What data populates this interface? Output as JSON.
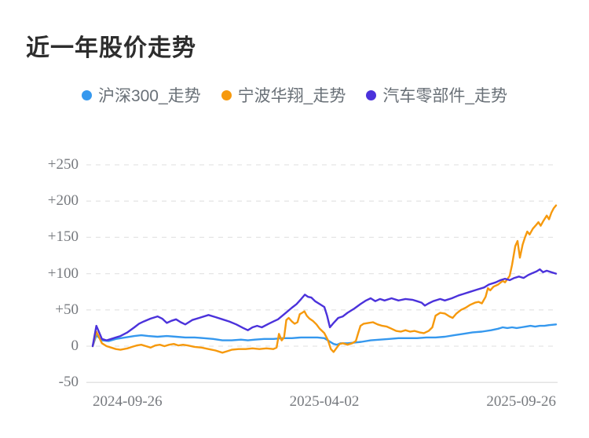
{
  "title": "近一年股价走势",
  "chart_data": {
    "type": "line",
    "title": "近一年股价走势",
    "legend_position": "top-center",
    "grid": "horizontal-dashed",
    "x_axis": {
      "labels": [
        "2024-09-26",
        "2025-04-02",
        "2025-09-26"
      ],
      "note": "x of each point is fraction 0-1 across one year of trading days"
    },
    "y_axis": {
      "ylim": [
        -50,
        250
      ],
      "ticks": [
        250,
        200,
        150,
        100,
        50,
        0,
        -50
      ],
      "tick_labels": [
        "+250",
        "+200",
        "+150",
        "+100",
        "+50",
        "0",
        "-50"
      ]
    },
    "series": [
      {
        "id": "hs300",
        "name": "沪深300_走势",
        "color": "#3598ee",
        "points": [
          [
            0,
            0
          ],
          [
            0.008,
            15
          ],
          [
            0.02,
            8
          ],
          [
            0.035,
            7
          ],
          [
            0.05,
            10
          ],
          [
            0.07,
            12
          ],
          [
            0.09,
            14
          ],
          [
            0.105,
            15
          ],
          [
            0.12,
            14
          ],
          [
            0.14,
            13
          ],
          [
            0.16,
            14
          ],
          [
            0.18,
            13
          ],
          [
            0.2,
            12
          ],
          [
            0.22,
            12
          ],
          [
            0.24,
            11
          ],
          [
            0.26,
            10
          ],
          [
            0.28,
            8
          ],
          [
            0.3,
            8
          ],
          [
            0.32,
            9
          ],
          [
            0.335,
            8
          ],
          [
            0.35,
            9
          ],
          [
            0.37,
            10
          ],
          [
            0.39,
            10
          ],
          [
            0.41,
            11
          ],
          [
            0.43,
            11
          ],
          [
            0.45,
            12
          ],
          [
            0.47,
            12
          ],
          [
            0.485,
            12
          ],
          [
            0.5,
            11
          ],
          [
            0.51,
            7
          ],
          [
            0.52,
            3
          ],
          [
            0.527,
            2
          ],
          [
            0.535,
            4
          ],
          [
            0.55,
            4
          ],
          [
            0.565,
            5
          ],
          [
            0.58,
            6
          ],
          [
            0.6,
            8
          ],
          [
            0.62,
            9
          ],
          [
            0.64,
            10
          ],
          [
            0.66,
            11
          ],
          [
            0.68,
            11
          ],
          [
            0.7,
            11
          ],
          [
            0.72,
            12
          ],
          [
            0.74,
            12
          ],
          [
            0.76,
            13
          ],
          [
            0.78,
            15
          ],
          [
            0.8,
            17
          ],
          [
            0.82,
            19
          ],
          [
            0.84,
            20
          ],
          [
            0.86,
            22
          ],
          [
            0.875,
            24
          ],
          [
            0.885,
            26
          ],
          [
            0.895,
            25
          ],
          [
            0.905,
            26
          ],
          [
            0.915,
            25
          ],
          [
            0.925,
            26
          ],
          [
            0.935,
            27
          ],
          [
            0.945,
            28
          ],
          [
            0.955,
            27
          ],
          [
            0.965,
            28
          ],
          [
            0.975,
            28
          ],
          [
            0.985,
            29
          ],
          [
            1,
            30
          ]
        ]
      },
      {
        "id": "nbhx",
        "name": "宁波华翔_走势",
        "color": "#f6990d",
        "points": [
          [
            0,
            0
          ],
          [
            0.008,
            20
          ],
          [
            0.02,
            4
          ],
          [
            0.03,
            0
          ],
          [
            0.04,
            -2
          ],
          [
            0.05,
            -4
          ],
          [
            0.06,
            -5
          ],
          [
            0.075,
            -3
          ],
          [
            0.085,
            -1
          ],
          [
            0.095,
            1
          ],
          [
            0.105,
            2
          ],
          [
            0.115,
            0
          ],
          [
            0.125,
            -2
          ],
          [
            0.135,
            1
          ],
          [
            0.145,
            2
          ],
          [
            0.155,
            0
          ],
          [
            0.165,
            2
          ],
          [
            0.175,
            3
          ],
          [
            0.185,
            1
          ],
          [
            0.195,
            2
          ],
          [
            0.205,
            1
          ],
          [
            0.22,
            -1
          ],
          [
            0.235,
            -2
          ],
          [
            0.25,
            -4
          ],
          [
            0.265,
            -6
          ],
          [
            0.28,
            -9
          ],
          [
            0.29,
            -7
          ],
          [
            0.3,
            -5
          ],
          [
            0.315,
            -4
          ],
          [
            0.33,
            -4
          ],
          [
            0.345,
            -3
          ],
          [
            0.36,
            -4
          ],
          [
            0.375,
            -3
          ],
          [
            0.39,
            -4
          ],
          [
            0.397,
            -2
          ],
          [
            0.402,
            17
          ],
          [
            0.408,
            8
          ],
          [
            0.413,
            12
          ],
          [
            0.418,
            36
          ],
          [
            0.423,
            39
          ],
          [
            0.43,
            34
          ],
          [
            0.436,
            31
          ],
          [
            0.442,
            33
          ],
          [
            0.447,
            44
          ],
          [
            0.452,
            46
          ],
          [
            0.457,
            48
          ],
          [
            0.462,
            42
          ],
          [
            0.468,
            38
          ],
          [
            0.475,
            35
          ],
          [
            0.483,
            30
          ],
          [
            0.49,
            24
          ],
          [
            0.5,
            18
          ],
          [
            0.508,
            8
          ],
          [
            0.514,
            -4
          ],
          [
            0.52,
            -8
          ],
          [
            0.527,
            -2
          ],
          [
            0.533,
            3
          ],
          [
            0.54,
            4
          ],
          [
            0.55,
            2
          ],
          [
            0.56,
            4
          ],
          [
            0.568,
            7
          ],
          [
            0.573,
            18
          ],
          [
            0.578,
            28
          ],
          [
            0.585,
            31
          ],
          [
            0.595,
            32
          ],
          [
            0.605,
            33
          ],
          [
            0.615,
            30
          ],
          [
            0.625,
            28
          ],
          [
            0.635,
            27
          ],
          [
            0.645,
            24
          ],
          [
            0.655,
            21
          ],
          [
            0.665,
            20
          ],
          [
            0.675,
            22
          ],
          [
            0.685,
            20
          ],
          [
            0.695,
            21
          ],
          [
            0.705,
            19
          ],
          [
            0.715,
            18
          ],
          [
            0.725,
            21
          ],
          [
            0.733,
            26
          ],
          [
            0.74,
            42
          ],
          [
            0.75,
            46
          ],
          [
            0.76,
            45
          ],
          [
            0.77,
            41
          ],
          [
            0.777,
            39
          ],
          [
            0.785,
            45
          ],
          [
            0.795,
            50
          ],
          [
            0.805,
            53
          ],
          [
            0.815,
            57
          ],
          [
            0.825,
            60
          ],
          [
            0.833,
            61
          ],
          [
            0.84,
            59
          ],
          [
            0.848,
            68
          ],
          [
            0.853,
            80
          ],
          [
            0.858,
            77
          ],
          [
            0.865,
            82
          ],
          [
            0.875,
            85
          ],
          [
            0.885,
            90
          ],
          [
            0.89,
            88
          ],
          [
            0.9,
            97
          ],
          [
            0.905,
            112
          ],
          [
            0.912,
            138
          ],
          [
            0.917,
            145
          ],
          [
            0.922,
            122
          ],
          [
            0.928,
            140
          ],
          [
            0.933,
            150
          ],
          [
            0.938,
            158
          ],
          [
            0.943,
            154
          ],
          [
            0.95,
            162
          ],
          [
            0.957,
            167
          ],
          [
            0.962,
            171
          ],
          [
            0.967,
            166
          ],
          [
            0.973,
            173
          ],
          [
            0.98,
            180
          ],
          [
            0.985,
            175
          ],
          [
            0.99,
            184
          ],
          [
            0.995,
            190
          ],
          [
            1,
            194
          ]
        ]
      },
      {
        "id": "autoparts",
        "name": "汽车零部件_走势",
        "color": "#4b32db",
        "points": [
          [
            0,
            0
          ],
          [
            0.008,
            28
          ],
          [
            0.02,
            10
          ],
          [
            0.03,
            8
          ],
          [
            0.04,
            10
          ],
          [
            0.05,
            12
          ],
          [
            0.06,
            14
          ],
          [
            0.075,
            19
          ],
          [
            0.09,
            26
          ],
          [
            0.1,
            31
          ],
          [
            0.11,
            34
          ],
          [
            0.125,
            38
          ],
          [
            0.14,
            41
          ],
          [
            0.15,
            38
          ],
          [
            0.16,
            32
          ],
          [
            0.17,
            35
          ],
          [
            0.18,
            37
          ],
          [
            0.19,
            33
          ],
          [
            0.2,
            30
          ],
          [
            0.215,
            36
          ],
          [
            0.23,
            39
          ],
          [
            0.25,
            43
          ],
          [
            0.265,
            40
          ],
          [
            0.28,
            37
          ],
          [
            0.295,
            34
          ],
          [
            0.31,
            30
          ],
          [
            0.325,
            25
          ],
          [
            0.335,
            22
          ],
          [
            0.345,
            26
          ],
          [
            0.355,
            28
          ],
          [
            0.365,
            26
          ],
          [
            0.38,
            31
          ],
          [
            0.39,
            34
          ],
          [
            0.4,
            37
          ],
          [
            0.415,
            45
          ],
          [
            0.43,
            53
          ],
          [
            0.44,
            58
          ],
          [
            0.45,
            65
          ],
          [
            0.458,
            71
          ],
          [
            0.465,
            68
          ],
          [
            0.472,
            67
          ],
          [
            0.48,
            62
          ],
          [
            0.49,
            58
          ],
          [
            0.5,
            54
          ],
          [
            0.506,
            42
          ],
          [
            0.512,
            26
          ],
          [
            0.52,
            32
          ],
          [
            0.53,
            39
          ],
          [
            0.54,
            41
          ],
          [
            0.55,
            46
          ],
          [
            0.565,
            52
          ],
          [
            0.578,
            58
          ],
          [
            0.59,
            63
          ],
          [
            0.6,
            66
          ],
          [
            0.61,
            62
          ],
          [
            0.62,
            65
          ],
          [
            0.63,
            63
          ],
          [
            0.645,
            66
          ],
          [
            0.66,
            63
          ],
          [
            0.675,
            65
          ],
          [
            0.69,
            64
          ],
          [
            0.7,
            62
          ],
          [
            0.71,
            60
          ],
          [
            0.717,
            56
          ],
          [
            0.725,
            59
          ],
          [
            0.735,
            62
          ],
          [
            0.75,
            65
          ],
          [
            0.76,
            63
          ],
          [
            0.775,
            66
          ],
          [
            0.79,
            70
          ],
          [
            0.8,
            72
          ],
          [
            0.815,
            75
          ],
          [
            0.83,
            78
          ],
          [
            0.845,
            81
          ],
          [
            0.855,
            85
          ],
          [
            0.87,
            88
          ],
          [
            0.88,
            91
          ],
          [
            0.89,
            93
          ],
          [
            0.9,
            91
          ],
          [
            0.91,
            94
          ],
          [
            0.92,
            96
          ],
          [
            0.93,
            94
          ],
          [
            0.94,
            98
          ],
          [
            0.95,
            101
          ],
          [
            0.958,
            103
          ],
          [
            0.965,
            106
          ],
          [
            0.972,
            102
          ],
          [
            0.98,
            104
          ],
          [
            0.99,
            102
          ],
          [
            1,
            100
          ]
        ]
      }
    ],
    "style": {
      "gridline_dashed_color": "#e5e5e5",
      "axis_line_solid_color": "#e0e0e0",
      "axis_label_color": "#76797e",
      "legend_text_color": "#697077",
      "title_color": "#2d2d2d",
      "line_width": 2.4
    }
  }
}
